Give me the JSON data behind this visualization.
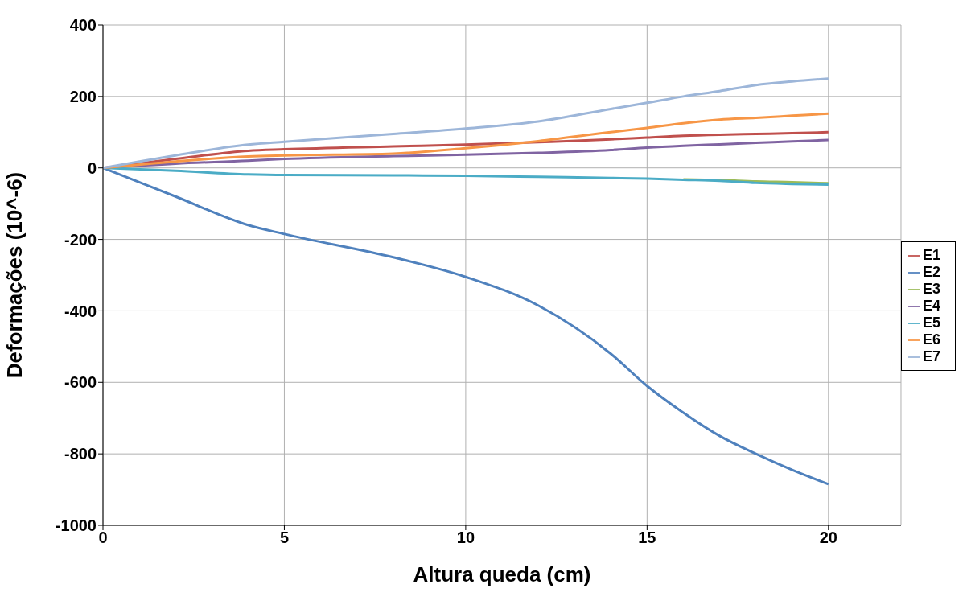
{
  "chart_data": {
    "type": "line",
    "xlabel": "Altura queda (cm)",
    "ylabel": "Deformações (10^-6)",
    "xlim": [
      0,
      22
    ],
    "xticks": [
      0,
      5,
      10,
      15,
      20
    ],
    "ylim": [
      -1000,
      400
    ],
    "yticks": [
      -1000,
      -800,
      -600,
      -400,
      -200,
      0,
      200,
      400
    ],
    "grid": true,
    "legend": "right",
    "marker": "none",
    "line_style": "solid",
    "x": [
      0,
      2,
      4,
      5,
      8,
      10,
      12,
      14,
      15,
      16,
      17,
      18,
      19,
      20
    ],
    "series": [
      {
        "name": "E1",
        "color": "#c0504d",
        "values": [
          0,
          25,
          48,
          52,
          60,
          65,
          72,
          80,
          85,
          90,
          93,
          95,
          97,
          100
        ]
      },
      {
        "name": "E2",
        "color": "#4f81bd",
        "values": [
          0,
          -80,
          -160,
          -185,
          -250,
          -305,
          -385,
          -520,
          -610,
          -685,
          -750,
          -800,
          -845,
          -885
        ]
      },
      {
        "name": "E3",
        "color": "#9bbb59",
        "values": [
          null,
          null,
          null,
          null,
          null,
          null,
          null,
          null,
          null,
          -32,
          -34,
          -38,
          -40,
          -43
        ]
      },
      {
        "name": "E4",
        "color": "#8064a2",
        "values": [
          0,
          12,
          20,
          25,
          33,
          37,
          42,
          50,
          57,
          62,
          66,
          70,
          74,
          78
        ]
      },
      {
        "name": "E5",
        "color": "#4bacc6",
        "values": [
          0,
          -8,
          -18,
          -20,
          -21,
          -22,
          -25,
          -28,
          -30,
          -33,
          -36,
          -42,
          -45,
          -47
        ]
      },
      {
        "name": "E6",
        "color": "#f79646",
        "values": [
          0,
          18,
          32,
          35,
          40,
          55,
          75,
          100,
          112,
          125,
          135,
          140,
          146,
          152
        ]
      },
      {
        "name": "E7",
        "color": "#9db6d9",
        "values": [
          0,
          35,
          65,
          73,
          95,
          110,
          130,
          165,
          182,
          200,
          215,
          232,
          242,
          250
        ]
      }
    ]
  }
}
